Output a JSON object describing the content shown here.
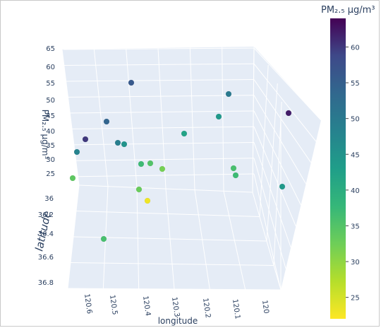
{
  "chart_data": {
    "type": "scatter3d",
    "title": "",
    "x_axis": {
      "title": "longitude",
      "ticks": [
        "120.6",
        "120.5",
        "120.4",
        "120.3",
        "120.2",
        "120.1",
        "120"
      ]
    },
    "y_axis": {
      "title": "latitude",
      "ticks": [
        "36",
        "36.2",
        "36.4",
        "36.6",
        "36.8"
      ]
    },
    "z_axis": {
      "title": "PM₂.₅ μg/m³",
      "ticks": [
        "25",
        "30",
        "35",
        "40",
        "45",
        "50",
        "55",
        "60",
        "65"
      ],
      "range": [
        22,
        65
      ]
    },
    "colorbar": {
      "title": "PM₂.₅ μg/m³",
      "ticks": [
        "60",
        "55",
        "50",
        "45",
        "40",
        "35",
        "30",
        "25"
      ],
      "range": [
        22,
        64
      ],
      "colorscale": "Viridis"
    },
    "points": [
      {
        "pm": 56
      },
      {
        "pm": 50
      },
      {
        "pm": 62
      },
      {
        "pm": 54
      },
      {
        "pm": 44
      },
      {
        "pm": 42
      },
      {
        "pm": 60
      },
      {
        "pm": 48
      },
      {
        "pm": 49
      },
      {
        "pm": 45
      },
      {
        "pm": 37
      },
      {
        "pm": 35
      },
      {
        "pm": 32
      },
      {
        "pm": 36
      },
      {
        "pm": 37
      },
      {
        "pm": 34
      },
      {
        "pm": 44
      },
      {
        "pm": 33
      },
      {
        "pm": 23
      },
      {
        "pm": 36
      }
    ]
  }
}
